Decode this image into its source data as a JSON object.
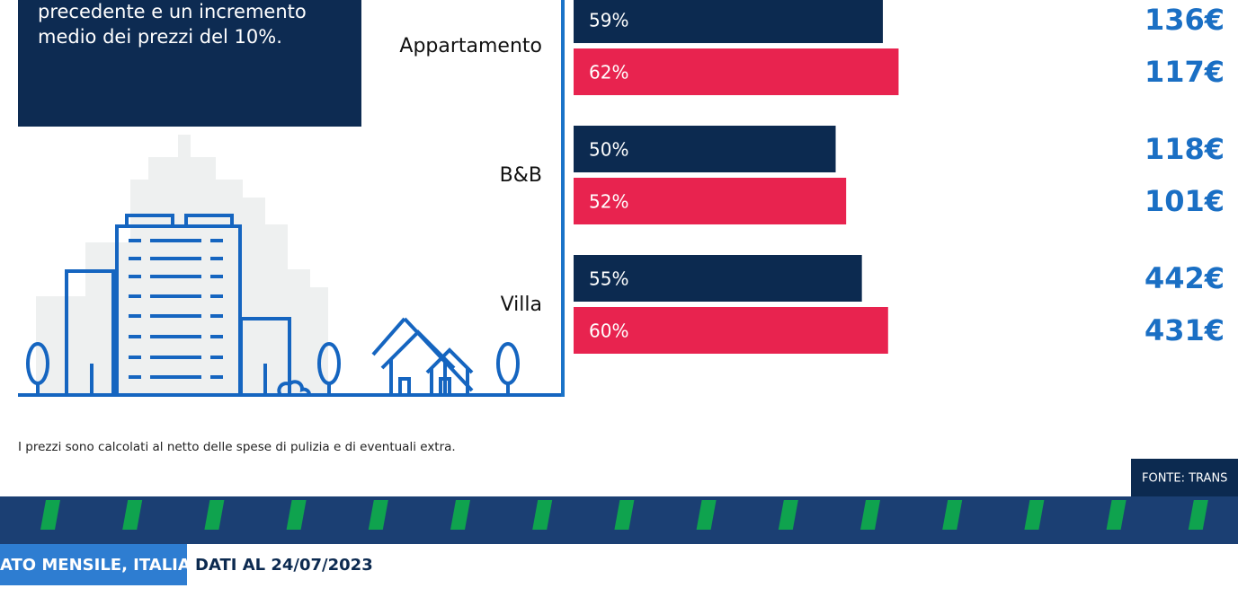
{
  "chart_data": {
    "type": "bar",
    "orientation": "horizontal",
    "categories": [
      "Appartamento",
      "B&B",
      "Villa"
    ],
    "series": [
      {
        "color": "#0c2a50",
        "values": [
          59,
          50,
          55
        ],
        "value_labels": [
          "59%",
          "50%",
          "55%"
        ],
        "price_labels": [
          "136€",
          "118€",
          "442€"
        ]
      },
      {
        "color": "#e8234f",
        "values": [
          62,
          52,
          60
        ],
        "value_labels": [
          "62%",
          "52%",
          "60%"
        ],
        "price_labels": [
          "117€",
          "101€",
          "431€"
        ]
      }
    ]
  },
  "intro": {
    "lines": [
      "precedente e un incremento",
      "medio dei prezzi del 10%."
    ]
  },
  "footnote": "I prezzi sono calcolati al netto delle spese di pulizia e di eventuali extra.",
  "source": "FONTE: TRANS",
  "footer": {
    "tag": "ATO MENSILE, ITALIA",
    "date": "DATI AL 24/07/2023"
  }
}
